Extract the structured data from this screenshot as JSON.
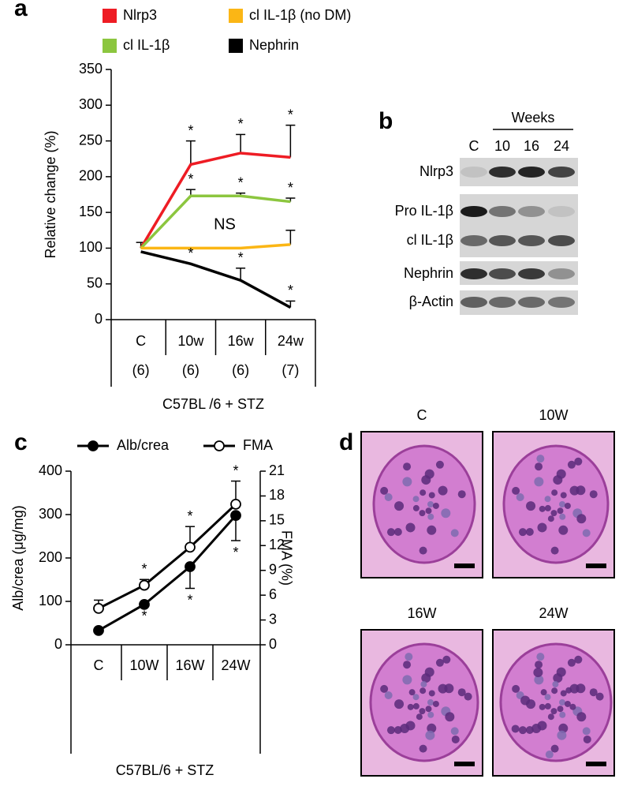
{
  "panel_labels": [
    "a",
    "b",
    "c",
    "d"
  ],
  "chart_data": [
    {
      "type": "line",
      "categories": [
        "C",
        "10w",
        "16w",
        "24w"
      ],
      "group_sizes": [
        "(6)",
        "(6)",
        "(6)",
        "(7)"
      ],
      "xlabel": "C57BL /6 + STZ",
      "ylabel": "Relative change (%)",
      "ylim": [
        0,
        350
      ],
      "yticks": [
        0,
        50,
        100,
        150,
        200,
        250,
        300,
        350
      ],
      "annotations": [
        "NS"
      ],
      "series": [
        {
          "name": "Nlrp3",
          "color": "#ee1c24",
          "values": [
            100,
            217,
            233,
            227
          ],
          "errors": [
            8,
            33,
            26,
            45
          ],
          "error_direction": "up",
          "markers": [
            null,
            "*",
            "*",
            "*"
          ]
        },
        {
          "name": "cl IL-1β",
          "color": "#8cc63f",
          "values": [
            100,
            173,
            173,
            165
          ],
          "errors": [
            null,
            9,
            4,
            5
          ],
          "error_direction": "up",
          "markers": [
            null,
            "*",
            "*",
            "*"
          ]
        },
        {
          "name": "cl IL-1β (no DM)",
          "color": "#fbb615",
          "values": [
            100,
            100,
            100,
            105
          ],
          "errors": [
            null,
            null,
            null,
            20
          ],
          "error_direction": "up",
          "markers": [
            null,
            null,
            null,
            null
          ]
        },
        {
          "name": "Nephrin",
          "color": "#000000",
          "values": [
            95,
            78,
            55,
            17
          ],
          "errors": [
            null,
            null,
            17,
            9
          ],
          "error_direction": "up",
          "markers": [
            null,
            "*",
            "*",
            "*"
          ]
        }
      ]
    },
    {
      "type": "line",
      "categories": [
        "C",
        "10W",
        "16W",
        "24W"
      ],
      "xlabel": "C57BL/6 + STZ",
      "ylabel": "Alb/crea (μg/mg)",
      "y2label": "FMA (%)",
      "ylim": [
        0,
        400
      ],
      "yticks": [
        0,
        100,
        200,
        300,
        400
      ],
      "y2lim": [
        0,
        21
      ],
      "y2ticks": [
        0,
        3,
        6,
        9,
        12,
        15,
        18,
        21
      ],
      "series": [
        {
          "name": "Alb/crea",
          "color": "#000000",
          "marker": "filled",
          "values": [
            33,
            93,
            180,
            298
          ],
          "errors": [
            null,
            null,
            50,
            58
          ],
          "error_direction": "down",
          "markers": [
            null,
            "*",
            "*",
            "*"
          ]
        },
        {
          "name": "FMA",
          "color": "#000000",
          "marker": "open",
          "axis": "y2",
          "values": [
            4.4,
            7.2,
            11.8,
            17.0
          ],
          "errors": [
            1.0,
            0.7,
            2.5,
            2.8
          ],
          "error_direction": "up",
          "markers": [
            null,
            "*",
            "*",
            "*"
          ]
        }
      ]
    }
  ],
  "blot": {
    "header": "Weeks",
    "lanes": [
      "C",
      "10",
      "16",
      "24"
    ],
    "rows": [
      "Nlrp3",
      "Pro IL-1β",
      "cl IL-1β",
      "Nephrin",
      "β-Actin"
    ]
  },
  "histology": {
    "labels": [
      "C",
      "10W",
      "16W",
      "24W"
    ]
  }
}
